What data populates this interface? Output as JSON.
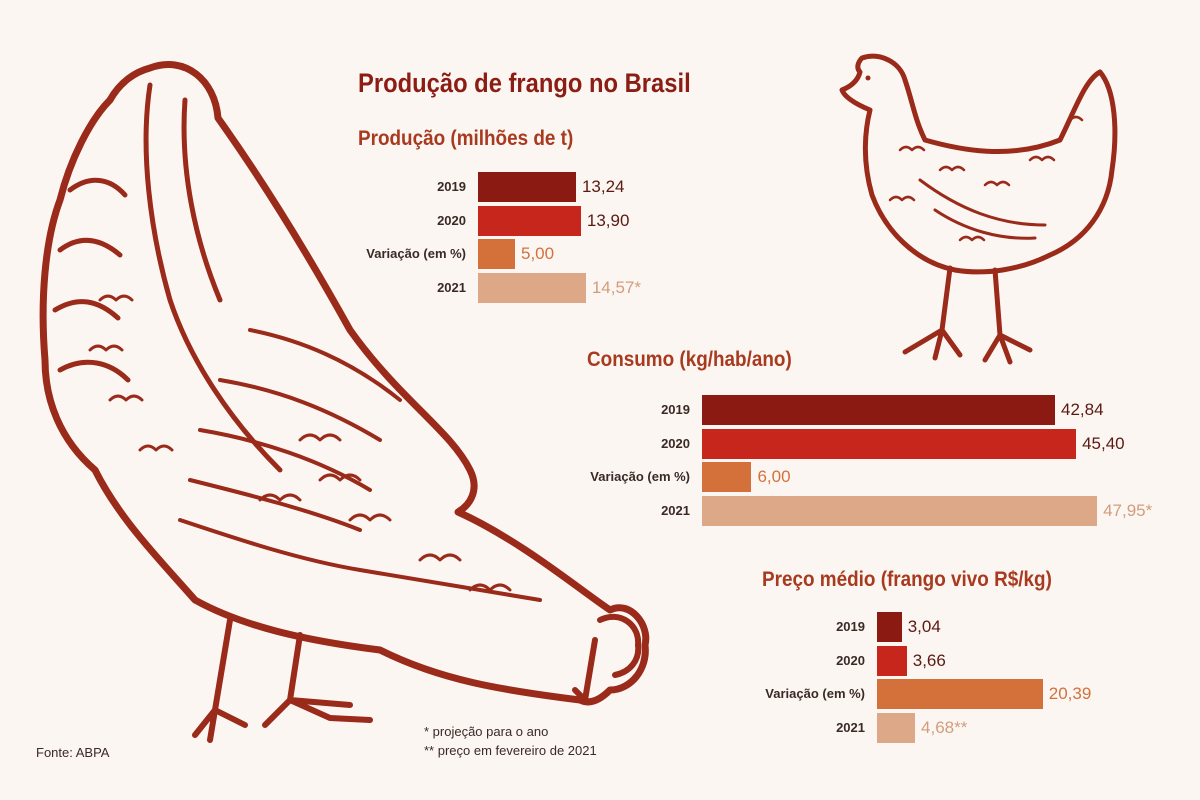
{
  "title": "Produção de frango no Brasil",
  "source": "Fonte: ABPA",
  "notes": [
    "* projeção para o ano",
    "** preço em fevereiro de 2021"
  ],
  "colors": {
    "y2019": "#8b1a12",
    "y2020": "#c6261c",
    "variacao": "#d4713b",
    "y2021": "#dca888",
    "title": "#8b1d14",
    "ink": "#9a2a1a"
  },
  "illustration_icons": [
    "hen-pecking-icon",
    "hen-standing-icon"
  ],
  "chart_data": [
    {
      "type": "bar",
      "orientation": "horizontal",
      "title": "Produção (milhões de t)",
      "categories": [
        "2019",
        "2020",
        "Variação (em %)",
        "2021"
      ],
      "values": [
        13.24,
        13.9,
        5.0,
        14.57
      ],
      "value_labels": [
        "13,24",
        "13,90",
        "5,00",
        "14,57*"
      ]
    },
    {
      "type": "bar",
      "orientation": "horizontal",
      "title": "Consumo (kg/hab/ano)",
      "categories": [
        "2019",
        "2020",
        "Variação (em %)",
        "2021"
      ],
      "values": [
        42.84,
        45.4,
        6.0,
        47.95
      ],
      "value_labels": [
        "42,84",
        "45,40",
        "6,00",
        "47,95*"
      ]
    },
    {
      "type": "bar",
      "orientation": "horizontal",
      "title": "Preço médio (frango vivo R$/kg)",
      "categories": [
        "2019",
        "2020",
        "Variação (em %)",
        "2021"
      ],
      "values": [
        3.04,
        3.66,
        20.39,
        4.68
      ],
      "value_labels": [
        "3,04",
        "3,66",
        "20,39",
        "4,68**"
      ]
    }
  ]
}
